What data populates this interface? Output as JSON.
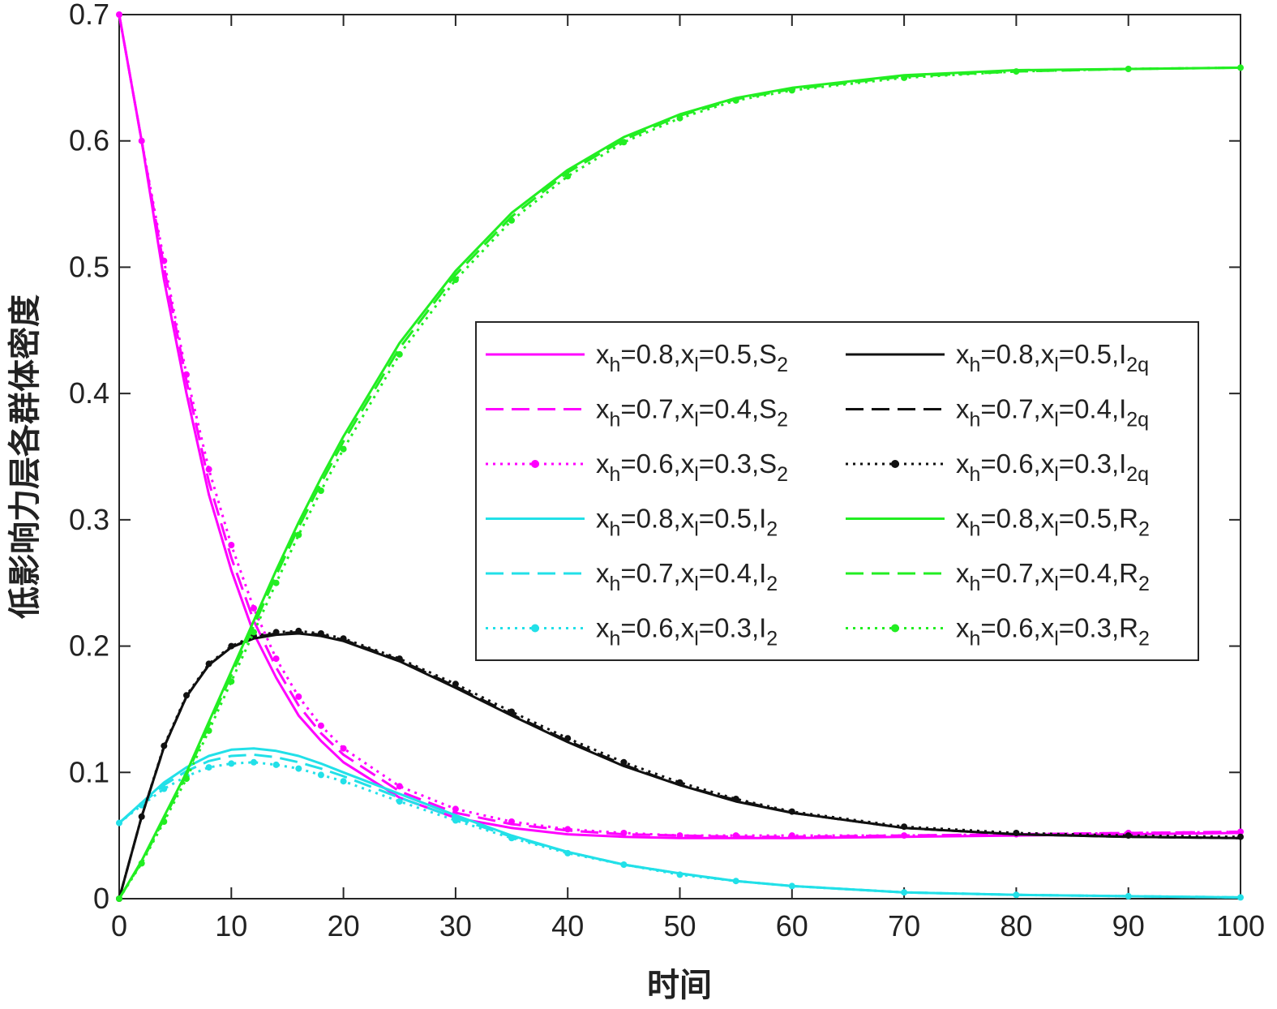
{
  "chart_data": {
    "type": "line",
    "xlabel": "时间",
    "ylabel": "低影响力层各群体密度",
    "xlim": [
      0,
      100
    ],
    "ylim": [
      0,
      0.7
    ],
    "xticks": [
      0,
      10,
      20,
      30,
      40,
      50,
      60,
      70,
      80,
      90,
      100
    ],
    "yticks": [
      0,
      0.1,
      0.2,
      0.3,
      0.4,
      0.5,
      0.6,
      0.7
    ],
    "ytick_labels": [
      "0",
      "0.1",
      "0.2",
      "0.3",
      "0.4",
      "0.5",
      "0.6",
      "0.7"
    ],
    "grid": false,
    "legend_placement": "center-right",
    "legend_columns": 2,
    "x": [
      0,
      2,
      4,
      6,
      8,
      10,
      12,
      14,
      16,
      18,
      20,
      25,
      30,
      35,
      40,
      45,
      50,
      55,
      60,
      70,
      80,
      90,
      100
    ],
    "series": [
      {
        "name": "xh=0.8,xl=0.5,S2",
        "label_parts": [
          "x",
          "h",
          "=0.8,x",
          "l",
          "=0.5,S",
          "2"
        ],
        "color": "#ff00ff",
        "style": "solid",
        "values": [
          0.7,
          0.6,
          0.49,
          0.4,
          0.32,
          0.26,
          0.21,
          0.175,
          0.145,
          0.125,
          0.108,
          0.08,
          0.064,
          0.056,
          0.051,
          0.049,
          0.048,
          0.048,
          0.048,
          0.049,
          0.05,
          0.051,
          0.052
        ]
      },
      {
        "name": "xh=0.7,xl=0.4,S2",
        "label_parts": [
          "x",
          "h",
          "=0.7,x",
          "l",
          "=0.4,S",
          "2"
        ],
        "color": "#ff00ff",
        "style": "dashed",
        "values": [
          0.7,
          0.6,
          0.5,
          0.41,
          0.33,
          0.27,
          0.22,
          0.183,
          0.153,
          0.131,
          0.114,
          0.085,
          0.068,
          0.059,
          0.054,
          0.051,
          0.05,
          0.049,
          0.049,
          0.05,
          0.051,
          0.052,
          0.053
        ]
      },
      {
        "name": "xh=0.6,xl=0.3,S2",
        "label_parts": [
          "x",
          "h",
          "=0.6,x",
          "l",
          "=0.3,S",
          "2"
        ],
        "color": "#ff00ff",
        "style": "dotted-marker",
        "values": [
          0.7,
          0.6,
          0.505,
          0.415,
          0.34,
          0.28,
          0.23,
          0.19,
          0.16,
          0.137,
          0.119,
          0.089,
          0.071,
          0.061,
          0.055,
          0.052,
          0.05,
          0.05,
          0.05,
          0.05,
          0.051,
          0.052,
          0.053
        ]
      },
      {
        "name": "xh=0.8,xl=0.5,I2",
        "label_parts": [
          "x",
          "h",
          "=0.8,x",
          "l",
          "=0.5,I",
          "2"
        ],
        "color": "#22e0e8",
        "style": "solid",
        "values": [
          0.06,
          0.076,
          0.092,
          0.104,
          0.113,
          0.118,
          0.119,
          0.117,
          0.113,
          0.107,
          0.1,
          0.083,
          0.066,
          0.05,
          0.037,
          0.027,
          0.02,
          0.014,
          0.01,
          0.005,
          0.003,
          0.002,
          0.001
        ]
      },
      {
        "name": "xh=0.7,xl=0.4,I2",
        "label_parts": [
          "x",
          "h",
          "=0.7,x",
          "l",
          "=0.4,I",
          "2"
        ],
        "color": "#22e0e8",
        "style": "dashed",
        "values": [
          0.06,
          0.075,
          0.09,
          0.101,
          0.109,
          0.113,
          0.114,
          0.112,
          0.108,
          0.103,
          0.097,
          0.08,
          0.064,
          0.049,
          0.037,
          0.027,
          0.02,
          0.014,
          0.01,
          0.005,
          0.003,
          0.002,
          0.001
        ]
      },
      {
        "name": "xh=0.6,xl=0.3,I2",
        "label_parts": [
          "x",
          "h",
          "=0.6,x",
          "l",
          "=0.3,I",
          "2"
        ],
        "color": "#22e0e8",
        "style": "dotted-marker",
        "values": [
          0.06,
          0.074,
          0.087,
          0.097,
          0.104,
          0.107,
          0.108,
          0.106,
          0.103,
          0.098,
          0.093,
          0.077,
          0.062,
          0.048,
          0.036,
          0.027,
          0.019,
          0.014,
          0.01,
          0.005,
          0.003,
          0.002,
          0.001
        ]
      },
      {
        "name": "xh=0.8,xl=0.5,I2q",
        "label_parts": [
          "x",
          "h",
          "=0.8,x",
          "l",
          "=0.5,I",
          "2q"
        ],
        "color": "#111111",
        "style": "solid",
        "values": [
          0.0,
          0.065,
          0.12,
          0.16,
          0.185,
          0.199,
          0.206,
          0.209,
          0.21,
          0.208,
          0.204,
          0.188,
          0.167,
          0.145,
          0.124,
          0.105,
          0.09,
          0.077,
          0.068,
          0.056,
          0.051,
          0.049,
          0.048
        ]
      },
      {
        "name": "xh=0.7,xl=0.4,I2q",
        "label_parts": [
          "x",
          "h",
          "=0.7,x",
          "l",
          "=0.4,I",
          "2q"
        ],
        "color": "#111111",
        "style": "dashed",
        "values": [
          0.0,
          0.065,
          0.12,
          0.16,
          0.185,
          0.199,
          0.207,
          0.21,
          0.211,
          0.209,
          0.205,
          0.189,
          0.168,
          0.146,
          0.125,
          0.106,
          0.09,
          0.078,
          0.068,
          0.056,
          0.051,
          0.049,
          0.048
        ]
      },
      {
        "name": "xh=0.6,xl=0.3,I2q",
        "label_parts": [
          "x",
          "h",
          "=0.6,x",
          "l",
          "=0.3,I",
          "2q"
        ],
        "color": "#111111",
        "style": "dotted-marker",
        "values": [
          0.0,
          0.065,
          0.121,
          0.161,
          0.186,
          0.2,
          0.208,
          0.211,
          0.212,
          0.21,
          0.206,
          0.19,
          0.17,
          0.148,
          0.127,
          0.108,
          0.092,
          0.079,
          0.069,
          0.057,
          0.052,
          0.05,
          0.049
        ]
      },
      {
        "name": "xh=0.8,xl=0.5,R2",
        "label_parts": [
          "x",
          "h",
          "=0.8,x",
          "l",
          "=0.5,R",
          "2"
        ],
        "color": "#22ee22",
        "style": "solid",
        "values": [
          0.0,
          0.03,
          0.065,
          0.1,
          0.14,
          0.18,
          0.22,
          0.26,
          0.298,
          0.333,
          0.366,
          0.44,
          0.497,
          0.543,
          0.577,
          0.603,
          0.621,
          0.634,
          0.642,
          0.652,
          0.656,
          0.657,
          0.658
        ]
      },
      {
        "name": "xh=0.7,xl=0.4,R2",
        "label_parts": [
          "x",
          "h",
          "=0.7,x",
          "l",
          "=0.4,R",
          "2"
        ],
        "color": "#22ee22",
        "style": "dashed",
        "values": [
          0.0,
          0.029,
          0.063,
          0.098,
          0.137,
          0.177,
          0.216,
          0.256,
          0.294,
          0.329,
          0.362,
          0.436,
          0.494,
          0.54,
          0.575,
          0.601,
          0.62,
          0.633,
          0.641,
          0.651,
          0.655,
          0.657,
          0.658
        ]
      },
      {
        "name": "xh=0.6,xl=0.3,R2",
        "label_parts": [
          "x",
          "h",
          "=0.6,x",
          "l",
          "=0.3,R",
          "2"
        ],
        "color": "#22ee22",
        "style": "dotted-marker",
        "values": [
          0.0,
          0.028,
          0.061,
          0.095,
          0.133,
          0.172,
          0.211,
          0.25,
          0.288,
          0.323,
          0.356,
          0.431,
          0.49,
          0.537,
          0.572,
          0.599,
          0.618,
          0.632,
          0.64,
          0.65,
          0.655,
          0.657,
          0.658
        ]
      }
    ]
  }
}
